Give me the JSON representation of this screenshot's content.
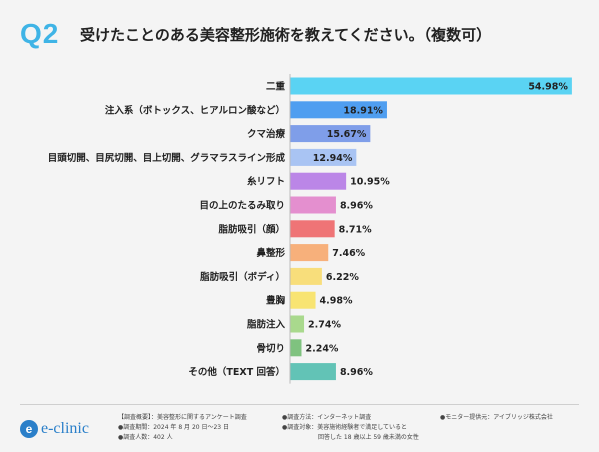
{
  "header": {
    "badge": "Q2",
    "title": "受けたことのある美容整形施術を教えてください。（複数可）"
  },
  "chart_data": {
    "type": "bar",
    "orientation": "horizontal",
    "title": "受けたことのある美容整形施術を教えてください。（複数可）",
    "xlabel": "",
    "ylabel": "",
    "xlim": [
      0,
      55
    ],
    "categories": [
      "二重",
      "注入系（ボトックス、ヒアルロン酸など）",
      "クマ治療",
      "目頭切開、目尻切開、目上切開、グラマラスライン形成",
      "糸リフト",
      "目の上のたるみ取り",
      "脂肪吸引（顔）",
      "鼻整形",
      "脂肪吸引（ボディ）",
      "豊胸",
      "脂肪注入",
      "骨切り",
      "その他（TEXT 回答）"
    ],
    "values": [
      54.98,
      18.91,
      15.67,
      12.94,
      10.95,
      8.96,
      8.71,
      7.46,
      6.22,
      4.98,
      2.74,
      2.24,
      8.96
    ],
    "value_labels": [
      "54.98%",
      "18.91%",
      "15.67%",
      "12.94%",
      "10.95%",
      "8.96%",
      "8.71%",
      "7.46%",
      "6.22%",
      "4.98%",
      "2.74%",
      "2.24%",
      "8.96%"
    ],
    "colors": [
      "#5ad3f3",
      "#4f9ef0",
      "#7f9ee9",
      "#a9c4f3",
      "#bb86e7",
      "#e48fcf",
      "#ef7476",
      "#f7b07b",
      "#f8de7b",
      "#f8e472",
      "#a9d98d",
      "#7fc27f",
      "#62c3b6"
    ],
    "grid": false,
    "legend": "none"
  },
  "footer": {
    "logo_mark": "e",
    "logo_text": "e-clinic",
    "lines": [
      "【調査概要】：美容整形に関するアンケート調査",
      "●調査期間：2024 年 8 月 20 日～23 日",
      "●調査人数：402 人",
      "●調査方法：インターネット調査",
      "●調査対象：美容施術経験者で満足していると",
      "回答した 18 歳以上 59 歳未満の女性",
      "●モニター提供元：アイブリッジ株式会社"
    ]
  }
}
